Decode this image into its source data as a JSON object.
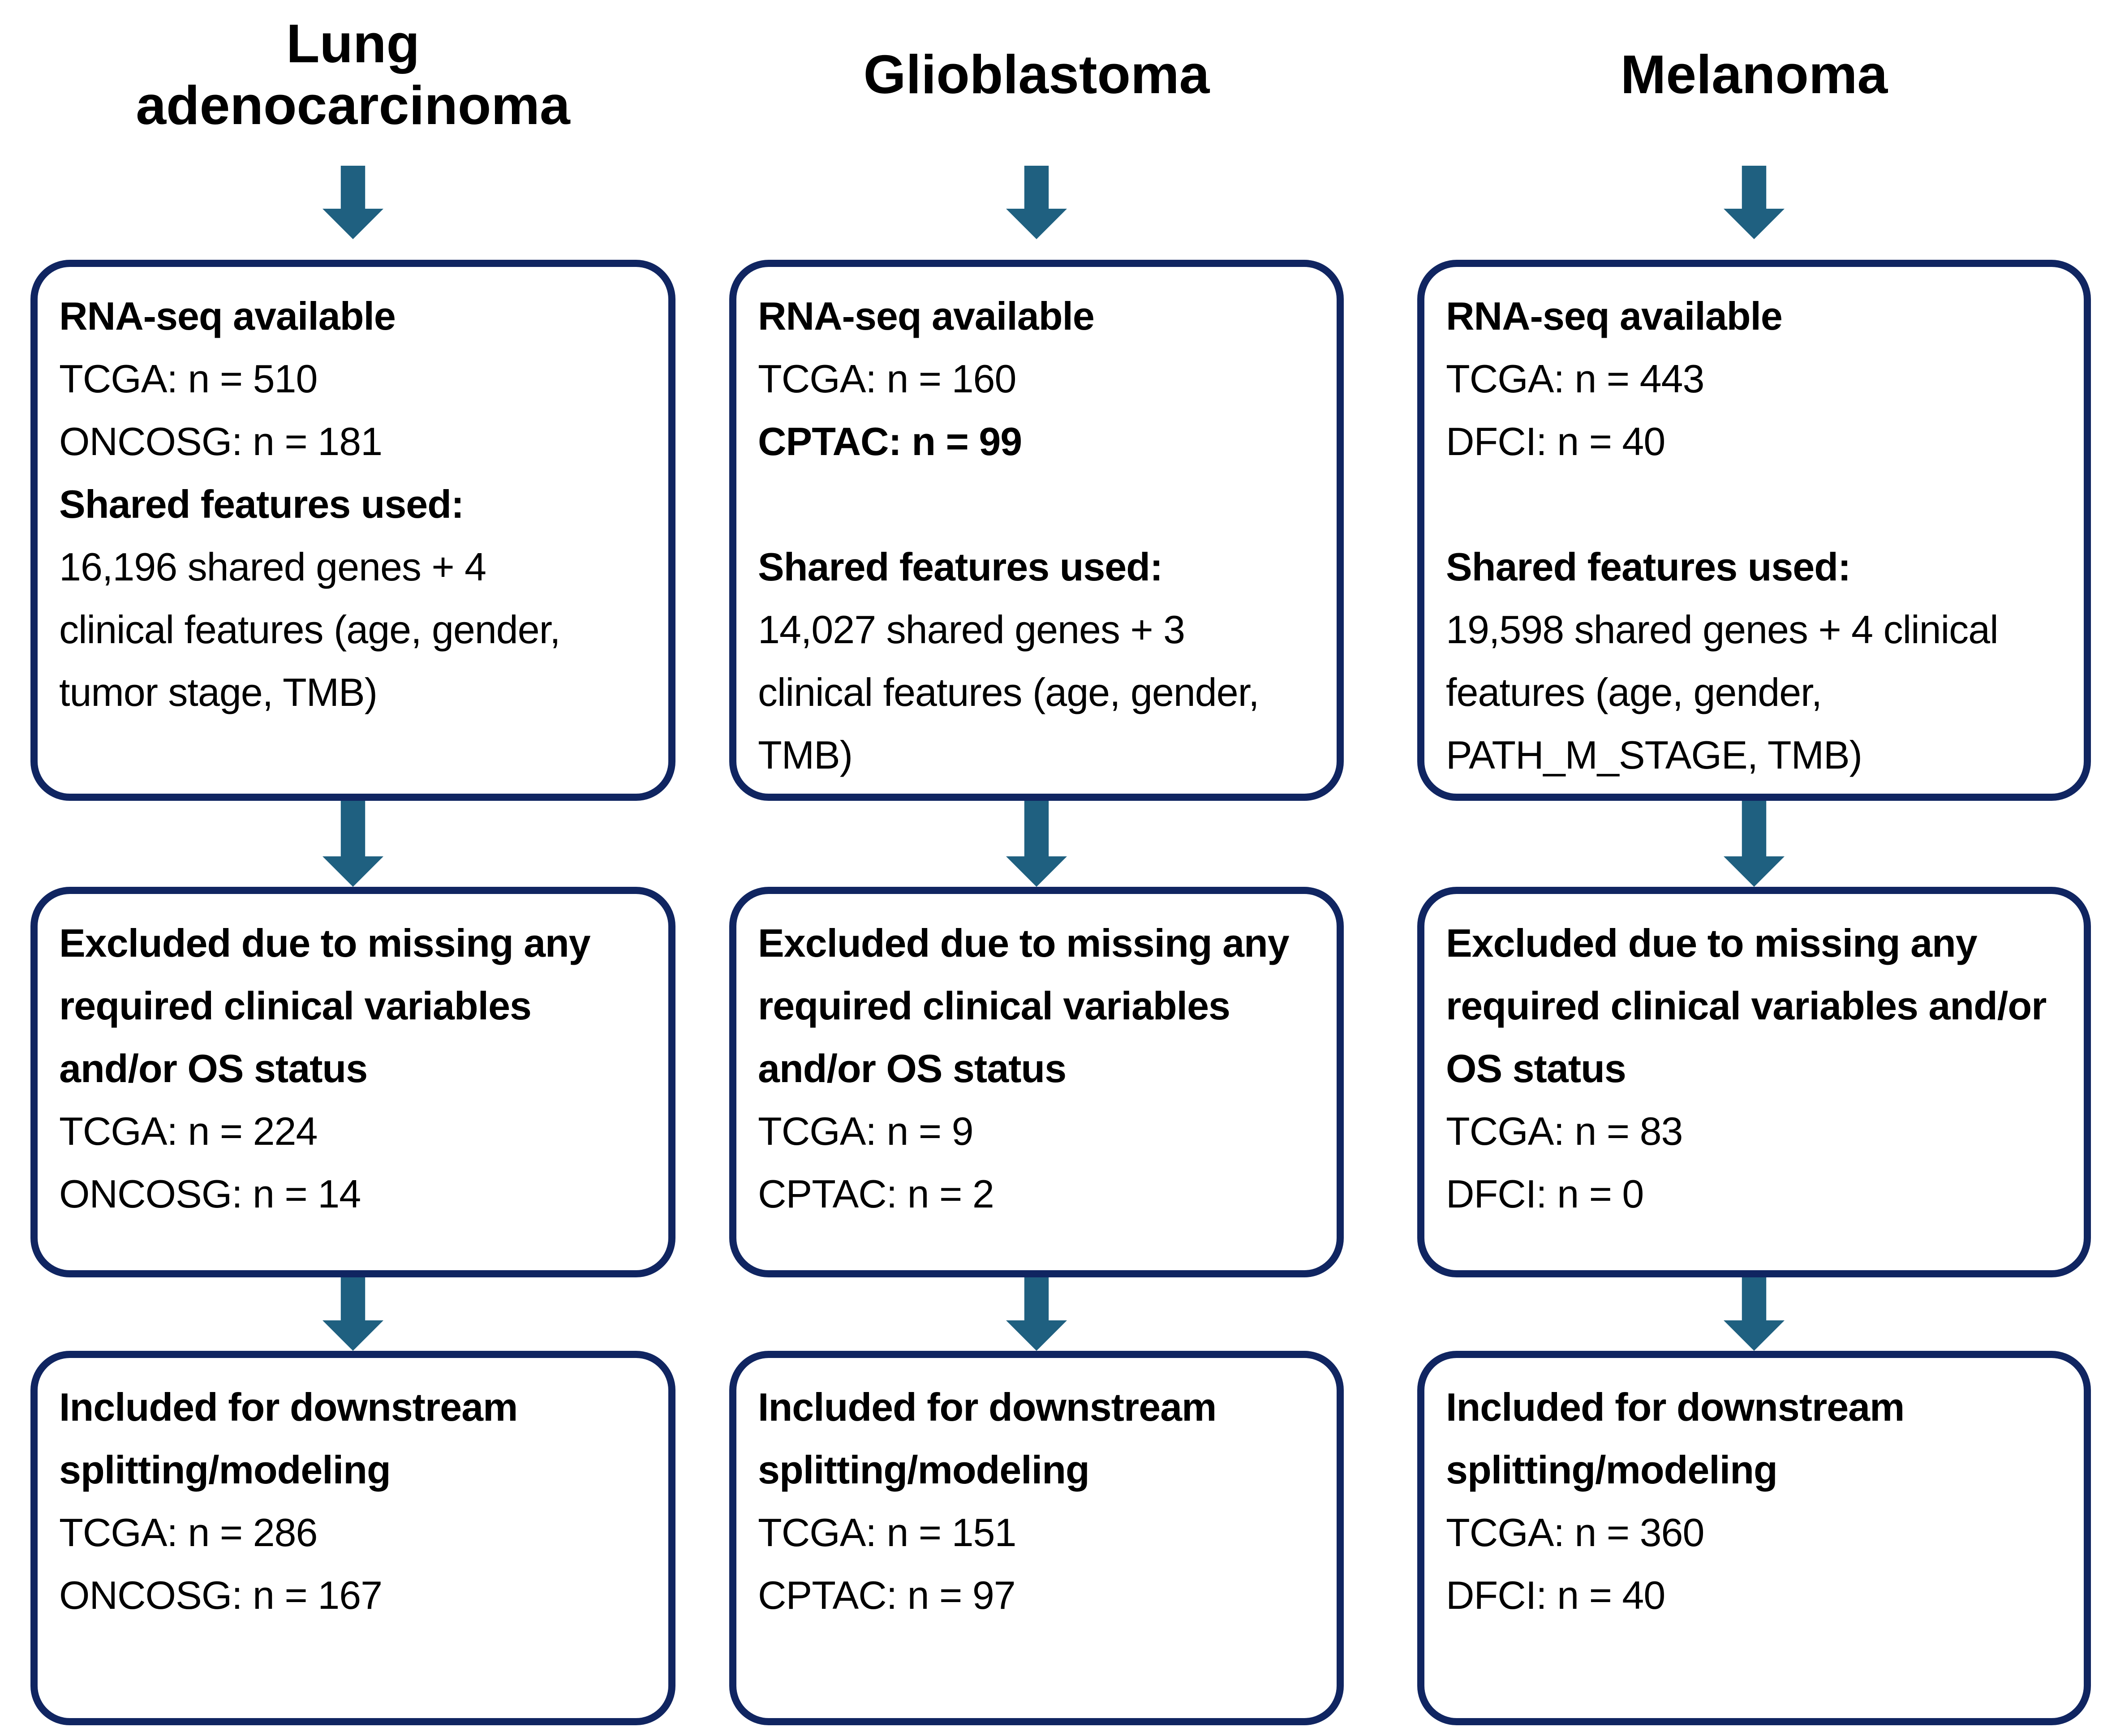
{
  "diagram": {
    "colors": {
      "box_border": "#102561",
      "arrow": "#1f6080",
      "text": "#000000",
      "background": "#ffffff"
    }
  },
  "columns": [
    {
      "title": "Lung\nadenocarcinoma",
      "boxes": [
        {
          "lines": [
            "RNA-seq available",
            "TCGA: n = 510",
            "ONCOSG: n = 181",
            "Shared features used:",
            "16,196 shared genes + 4 clinical features (age, gender, tumor stage, TMB)"
          ]
        },
        {
          "lines": [
            "Excluded due to missing any required clinical variables and/or OS status",
            "TCGA: n = 224",
            "ONCOSG: n = 14"
          ]
        },
        {
          "lines": [
            "Included for downstream splitting/modeling",
            "TCGA: n = 286",
            "ONCOSG: n = 167"
          ]
        }
      ]
    },
    {
      "title": "Glioblastoma",
      "boxes": [
        {
          "lines": [
            "RNA-seq available",
            "TCGA: n = 160",
            "CPTAC: n = 99",
            "Shared features used:",
            "14,027 shared genes + 3 clinical features (age, gender, TMB)"
          ]
        },
        {
          "lines": [
            "Excluded due to missing any required clinical variables and/or OS status",
            "TCGA: n = 9",
            "CPTAC: n = 2"
          ]
        },
        {
          "lines": [
            "Included for downstream splitting/modeling",
            "TCGA: n = 151",
            "CPTAC: n = 97"
          ]
        }
      ]
    },
    {
      "title": "Melanoma",
      "boxes": [
        {
          "lines": [
            "RNA-seq available",
            "TCGA: n = 443",
            "DFCI: n = 40",
            "Shared features used:",
            "19,598 shared genes + 4 clinical features (age, gender, PATH_M_STAGE, TMB)"
          ]
        },
        {
          "lines": [
            "Excluded due to missing any required clinical variables and/or OS status",
            "TCGA: n = 83",
            "DFCI: n = 0"
          ]
        },
        {
          "lines": [
            "Included for downstream splitting/modeling",
            "TCGA: n = 360",
            "DFCI: n = 40"
          ]
        }
      ]
    }
  ]
}
